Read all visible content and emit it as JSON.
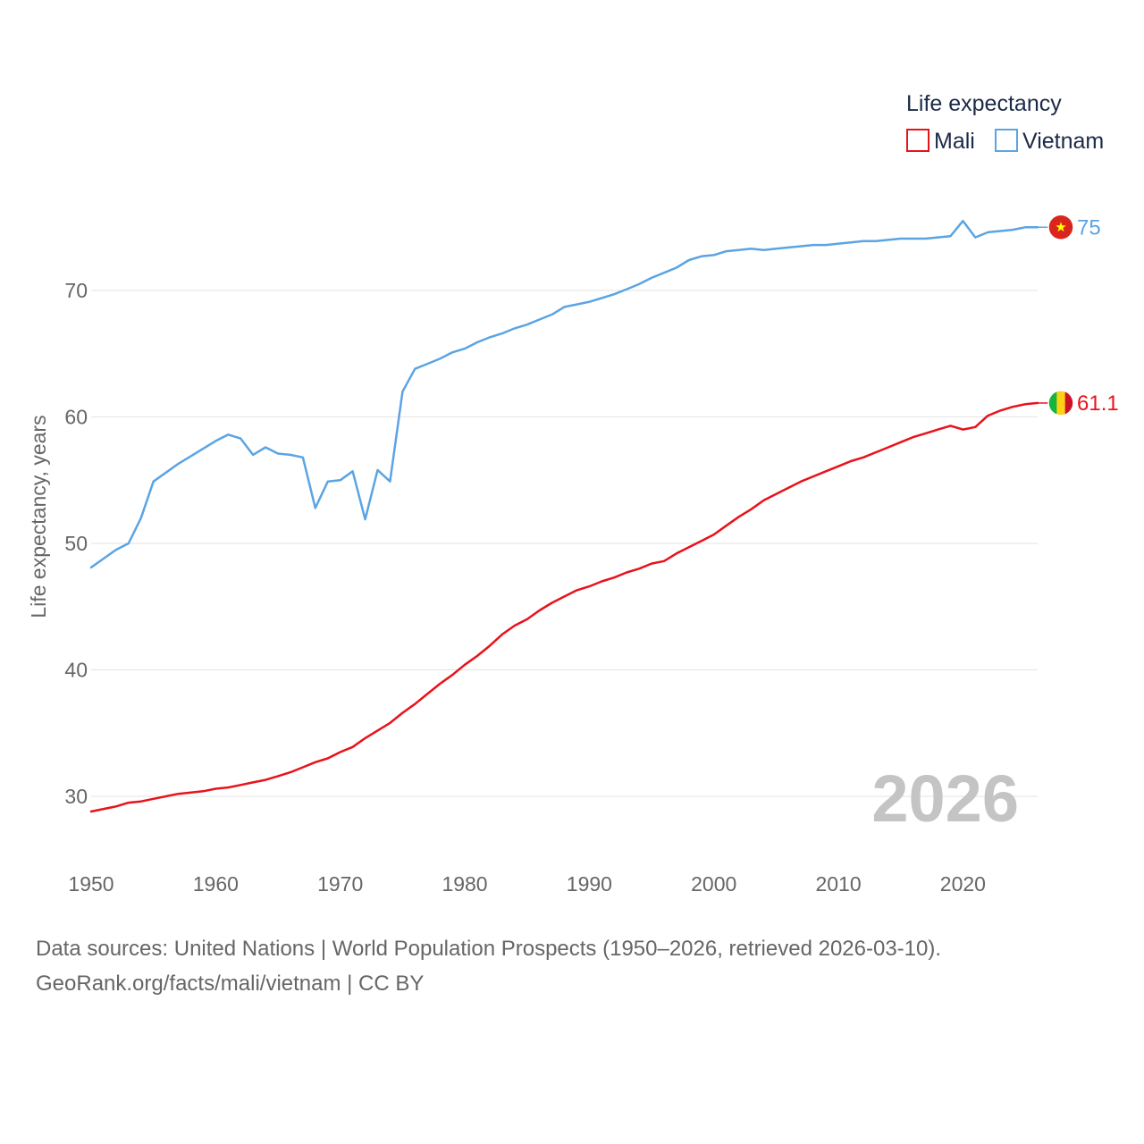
{
  "chart_data": {
    "type": "line",
    "title": "Life expectancy",
    "ylabel": "Life expectancy, years",
    "xlabel": "",
    "xlim": [
      1950,
      2026
    ],
    "ylim": [
      25,
      78
    ],
    "x_ticks": [
      1950,
      1960,
      1970,
      1980,
      1990,
      2000,
      2010,
      2020
    ],
    "y_ticks": [
      30,
      40,
      50,
      60,
      70
    ],
    "grid": true,
    "legend_position": "top-right",
    "highlight_year": "2026",
    "series": [
      {
        "name": "Mali",
        "color": "#e8121a",
        "end_label": "61.1",
        "flag_icon": "mali-flag-icon",
        "x": [
          1950,
          1951,
          1952,
          1953,
          1954,
          1955,
          1956,
          1957,
          1958,
          1959,
          1960,
          1961,
          1962,
          1963,
          1964,
          1965,
          1966,
          1967,
          1968,
          1969,
          1970,
          1971,
          1972,
          1973,
          1974,
          1975,
          1976,
          1977,
          1978,
          1979,
          1980,
          1981,
          1982,
          1983,
          1984,
          1985,
          1986,
          1987,
          1988,
          1989,
          1990,
          1991,
          1992,
          1993,
          1994,
          1995,
          1996,
          1997,
          1998,
          1999,
          2000,
          2001,
          2002,
          2003,
          2004,
          2005,
          2006,
          2007,
          2008,
          2009,
          2010,
          2011,
          2012,
          2013,
          2014,
          2015,
          2016,
          2017,
          2018,
          2019,
          2020,
          2021,
          2022,
          2023,
          2024,
          2025,
          2026
        ],
        "values": [
          28.8,
          29.0,
          29.2,
          29.5,
          29.6,
          29.8,
          30.0,
          30.2,
          30.3,
          30.4,
          30.6,
          30.7,
          30.9,
          31.1,
          31.3,
          31.6,
          31.9,
          32.3,
          32.7,
          33.0,
          33.5,
          33.9,
          34.6,
          35.2,
          35.8,
          36.6,
          37.3,
          38.1,
          38.9,
          39.6,
          40.4,
          41.1,
          41.9,
          42.8,
          43.5,
          44.0,
          44.7,
          45.3,
          45.8,
          46.3,
          46.6,
          47.0,
          47.3,
          47.7,
          48.0,
          48.4,
          48.6,
          49.2,
          49.7,
          50.2,
          50.7,
          51.4,
          52.1,
          52.7,
          53.4,
          53.9,
          54.4,
          54.9,
          55.3,
          55.7,
          56.1,
          56.5,
          56.8,
          57.2,
          57.6,
          58.0,
          58.4,
          58.7,
          59.0,
          59.3,
          59.0,
          59.2,
          60.1,
          60.5,
          60.8,
          61.0,
          61.1
        ]
      },
      {
        "name": "Vietnam",
        "color": "#5ba4e3",
        "end_label": "75",
        "flag_icon": "vietnam-flag-icon",
        "x": [
          1950,
          1951,
          1952,
          1953,
          1954,
          1955,
          1956,
          1957,
          1958,
          1959,
          1960,
          1961,
          1962,
          1963,
          1964,
          1965,
          1966,
          1967,
          1968,
          1969,
          1970,
          1971,
          1972,
          1973,
          1974,
          1975,
          1976,
          1977,
          1978,
          1979,
          1980,
          1981,
          1982,
          1983,
          1984,
          1985,
          1986,
          1987,
          1988,
          1989,
          1990,
          1991,
          1992,
          1993,
          1994,
          1995,
          1996,
          1997,
          1998,
          1999,
          2000,
          2001,
          2002,
          2003,
          2004,
          2005,
          2006,
          2007,
          2008,
          2009,
          2010,
          2011,
          2012,
          2013,
          2014,
          2015,
          2016,
          2017,
          2018,
          2019,
          2020,
          2021,
          2022,
          2023,
          2024,
          2025,
          2026
        ],
        "values": [
          48.1,
          48.8,
          49.5,
          50.0,
          52.0,
          54.9,
          55.6,
          56.3,
          56.9,
          57.5,
          58.1,
          58.6,
          58.3,
          57.0,
          57.6,
          57.1,
          57.0,
          56.8,
          52.8,
          54.9,
          55.0,
          55.7,
          51.9,
          55.8,
          54.9,
          62.0,
          63.8,
          64.2,
          64.6,
          65.1,
          65.4,
          65.9,
          66.3,
          66.6,
          67.0,
          67.3,
          67.7,
          68.1,
          68.7,
          68.9,
          69.1,
          69.4,
          69.7,
          70.1,
          70.5,
          71.0,
          71.4,
          71.8,
          72.4,
          72.7,
          72.8,
          73.1,
          73.2,
          73.3,
          73.2,
          73.3,
          73.4,
          73.5,
          73.6,
          73.6,
          73.7,
          73.8,
          73.9,
          73.9,
          74.0,
          74.1,
          74.1,
          74.1,
          74.2,
          74.3,
          75.5,
          74.2,
          74.6,
          74.7,
          74.8,
          75.0,
          75.0
        ]
      }
    ],
    "source_line_1": "Data sources: United Nations | World Population Prospects (1950–2026, retrieved 2026-03-10).",
    "source_line_2": "GeoRank.org/facts/mali/vietnam | CC BY"
  }
}
